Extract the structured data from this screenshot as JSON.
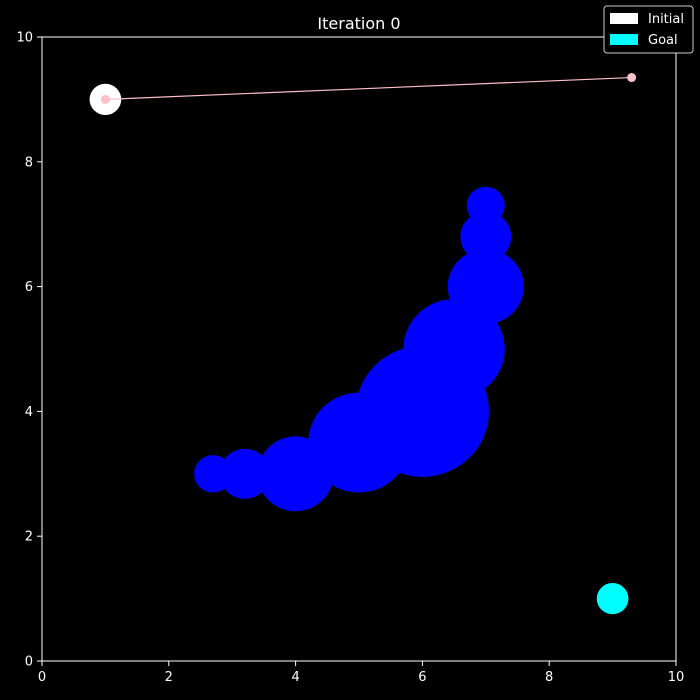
{
  "chart_data": {
    "type": "scatter",
    "title": "Iteration 0",
    "xlabel": "",
    "ylabel": "",
    "xlim": [
      0,
      10
    ],
    "ylim": [
      0,
      10
    ],
    "xticks": [
      0,
      2,
      4,
      6,
      8,
      10
    ],
    "yticks": [
      0,
      2,
      4,
      6,
      8,
      10
    ],
    "grid": false,
    "legend_position": "top-right",
    "colors": {
      "background": "#000000",
      "axes": "#ffffff",
      "obstacle": "#0000ff",
      "initial": "#ffffff",
      "goal": "#00ffff",
      "path": "#ffc0cb"
    },
    "legend": [
      {
        "label": "Initial",
        "color": "#ffffff"
      },
      {
        "label": "Goal",
        "color": "#00ffff"
      }
    ],
    "initial": {
      "x": 1.0,
      "y": 9.0,
      "r": 0.25
    },
    "goal": {
      "x": 9.0,
      "y": 1.0,
      "r": 0.25
    },
    "path": [
      {
        "x": 1.0,
        "y": 9.0
      },
      {
        "x": 9.3,
        "y": 9.35
      }
    ],
    "obstacles": [
      {
        "x": 2.7,
        "y": 3.0,
        "r": 0.3
      },
      {
        "x": 3.2,
        "y": 3.0,
        "r": 0.4
      },
      {
        "x": 4.0,
        "y": 3.0,
        "r": 0.6
      },
      {
        "x": 5.0,
        "y": 3.5,
        "r": 0.8
      },
      {
        "x": 6.0,
        "y": 4.0,
        "r": 1.05
      },
      {
        "x": 6.5,
        "y": 5.0,
        "r": 0.8
      },
      {
        "x": 7.0,
        "y": 6.0,
        "r": 0.6
      },
      {
        "x": 7.0,
        "y": 6.8,
        "r": 0.4
      },
      {
        "x": 7.0,
        "y": 7.3,
        "r": 0.3
      }
    ]
  }
}
